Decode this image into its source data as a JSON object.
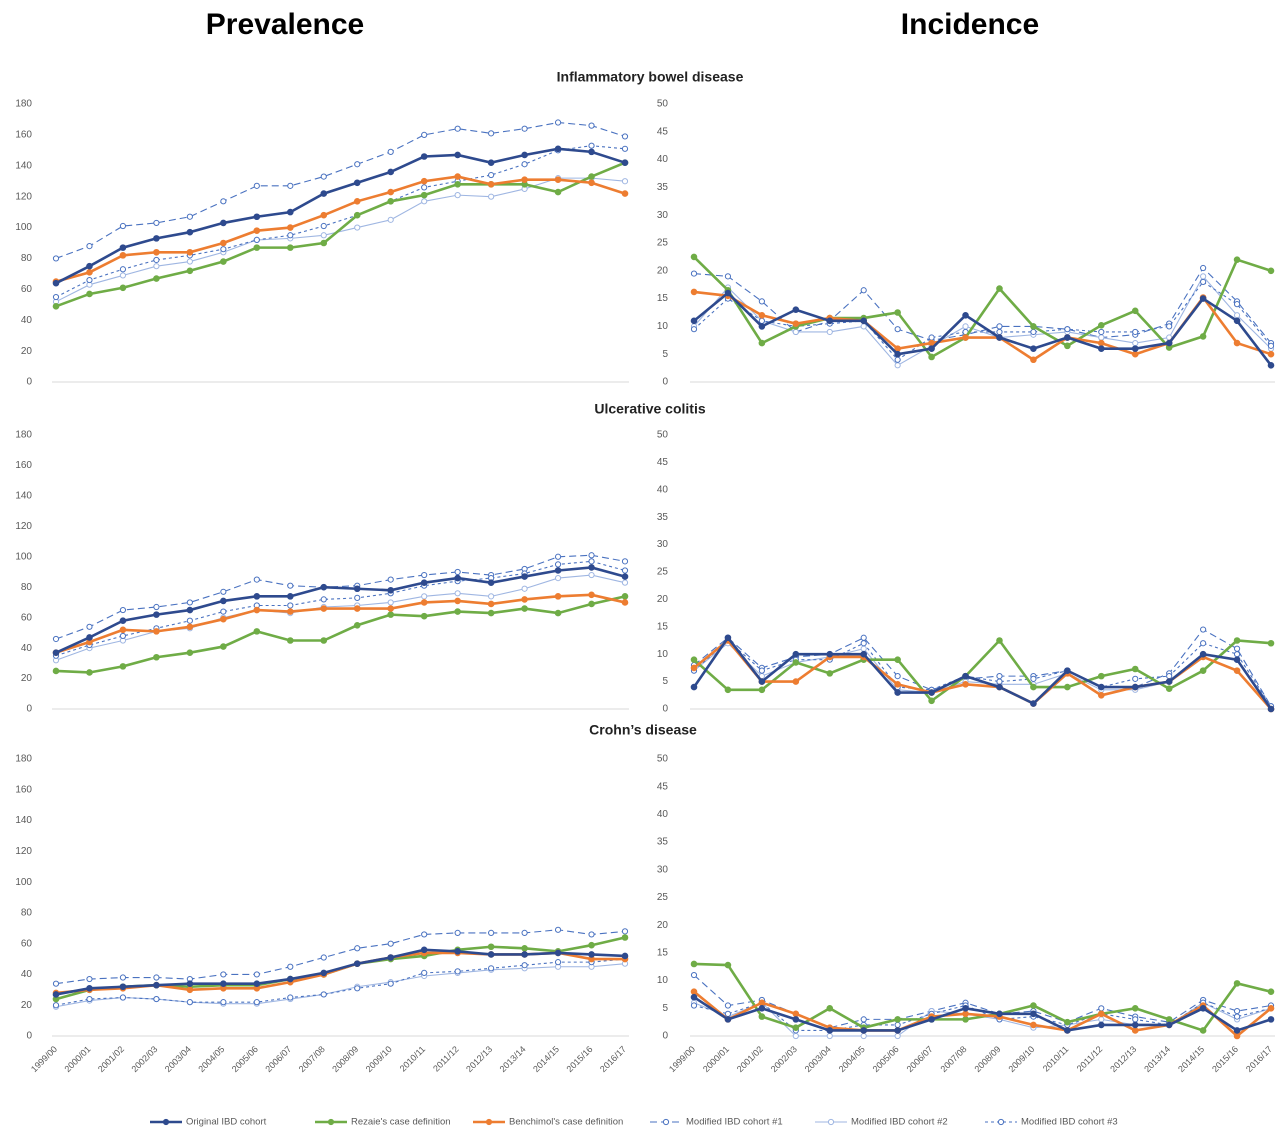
{
  "column_titles": [
    "Prevalence",
    "Incidence"
  ],
  "row_titles": [
    "Inflammatory bowel disease",
    "Ulcerative colitis",
    "Crohn’s disease"
  ],
  "legend": [
    {
      "name": "Original IBD cohort",
      "color": "#2e4a8e",
      "dash": "solid",
      "marker": "filled",
      "width": 2.6
    },
    {
      "name": "Rezaie's case definition",
      "color": "#6fac46",
      "dash": "solid",
      "marker": "filled",
      "width": 2.6
    },
    {
      "name": "Benchimol's case definition",
      "color": "#ed7d31",
      "dash": "solid",
      "marker": "filled",
      "width": 2.6
    },
    {
      "name": "Modified IBD cohort #1",
      "color": "#4a72c0",
      "dash": "dashed",
      "marker": "open",
      "width": 1.1
    },
    {
      "name": "Modified IBD cohort #2",
      "color": "#9fb6e2",
      "dash": "solid",
      "marker": "open",
      "width": 1.1
    },
    {
      "name": "Modified IBD cohort #3",
      "color": "#4a72c0",
      "dash": "dotted",
      "marker": "open",
      "width": 1.1
    }
  ],
  "chart_data": [
    {
      "type": "line",
      "ylim": [
        0,
        180
      ],
      "yticks": [
        0,
        20,
        40,
        60,
        80,
        100,
        120,
        140,
        160,
        180
      ],
      "series": [
        {
          "values": [
            64,
            75,
            87,
            93,
            97,
            103,
            107,
            110,
            122,
            129,
            136,
            146,
            147,
            142,
            147,
            151,
            149,
            142
          ]
        },
        {
          "values": [
            49,
            57,
            61,
            67,
            72,
            78,
            87,
            87,
            90,
            108,
            117,
            121,
            128,
            128,
            128,
            123,
            133,
            142
          ]
        },
        {
          "values": [
            65,
            71,
            82,
            84,
            84,
            90,
            98,
            100,
            108,
            117,
            123,
            130,
            133,
            128,
            131,
            131,
            129,
            122
          ]
        },
        {
          "values": [
            80,
            88,
            101,
            103,
            107,
            117,
            127,
            127,
            133,
            141,
            149,
            160,
            164,
            161,
            164,
            168,
            166,
            159
          ]
        },
        {
          "values": [
            52,
            63,
            69,
            75,
            78,
            84,
            92,
            93,
            95,
            100,
            105,
            117,
            121,
            120,
            125,
            132,
            132,
            130
          ]
        },
        {
          "values": [
            55,
            66,
            73,
            79,
            82,
            86,
            92,
            95,
            101,
            108,
            117,
            126,
            130,
            134,
            141,
            150,
            153,
            151
          ]
        }
      ]
    },
    {
      "type": "line",
      "ylim": [
        0,
        50
      ],
      "yticks": [
        0,
        5,
        10,
        15,
        20,
        25,
        30,
        35,
        40,
        45,
        50
      ],
      "series": [
        {
          "values": [
            11,
            16,
            10,
            13,
            11,
            11,
            5,
            6,
            12,
            8,
            6,
            8,
            6,
            6,
            7,
            15,
            11,
            3
          ]
        },
        {
          "values": [
            22.5,
            16.5,
            7,
            10,
            11.5,
            11.5,
            12.5,
            4.5,
            8,
            16.8,
            10,
            6.5,
            10.2,
            12.8,
            6.2,
            8.2,
            22,
            20
          ]
        },
        {
          "values": [
            16.2,
            15.5,
            12,
            10.5,
            11.5,
            11,
            6,
            7,
            8,
            8,
            4,
            8,
            7,
            5,
            7,
            15.2,
            7,
            5
          ]
        },
        {
          "values": [
            19.5,
            19,
            14.5,
            9,
            11,
            16.5,
            9.5,
            7.5,
            8.5,
            10,
            10,
            9.5,
            8,
            8.5,
            10.5,
            20.5,
            14.5,
            7
          ]
        },
        {
          "values": [
            10,
            17,
            11,
            9,
            9,
            10,
            3,
            6.5,
            10,
            8,
            8.5,
            9,
            8,
            7,
            8,
            19,
            12,
            6
          ]
        },
        {
          "values": [
            9.5,
            15,
            11,
            10,
            10.5,
            11,
            4,
            8,
            9,
            9,
            9,
            9.5,
            9,
            9,
            10,
            18,
            14,
            6.5
          ]
        }
      ]
    },
    {
      "type": "line",
      "ylim": [
        0,
        180
      ],
      "yticks": [
        0,
        20,
        40,
        60,
        80,
        100,
        120,
        140,
        160,
        180
      ],
      "series": [
        {
          "values": [
            37,
            47,
            58,
            62,
            65,
            71,
            74,
            74,
            80,
            79,
            78,
            83,
            86,
            83,
            87,
            91,
            93,
            87
          ]
        },
        {
          "values": [
            25,
            24,
            28,
            34,
            37,
            41,
            51,
            45,
            45,
            55,
            62,
            61,
            64,
            63,
            66,
            63,
            69,
            74
          ]
        },
        {
          "values": [
            37,
            44,
            52,
            51,
            54,
            59,
            65,
            64,
            66,
            66,
            66,
            70,
            71,
            69,
            72,
            74,
            75,
            70
          ]
        },
        {
          "values": [
            46,
            54,
            65,
            67,
            70,
            77,
            85,
            81,
            80,
            81,
            85,
            88,
            90,
            88,
            92,
            100,
            101,
            97
          ]
        },
        {
          "values": [
            32,
            40,
            45,
            51,
            53,
            60,
            65,
            63,
            67,
            68,
            70,
            74,
            76,
            74,
            79,
            86,
            88,
            83
          ]
        },
        {
          "values": [
            35,
            42,
            48,
            53,
            58,
            64,
            68,
            68,
            72,
            73,
            76,
            81,
            84,
            86,
            89,
            95,
            97,
            91
          ]
        }
      ]
    },
    {
      "type": "line",
      "ylim": [
        0,
        50
      ],
      "yticks": [
        0,
        5,
        10,
        15,
        20,
        25,
        30,
        35,
        40,
        45,
        50
      ],
      "series": [
        {
          "values": [
            4,
            13,
            5,
            10,
            10,
            10,
            3,
            3,
            6,
            4,
            1,
            7,
            4,
            4,
            5,
            10,
            9,
            0
          ]
        },
        {
          "values": [
            9,
            3.5,
            3.5,
            8.5,
            6.5,
            9,
            9,
            1.5,
            6,
            12.5,
            4,
            4,
            6,
            7.3,
            3.7,
            7,
            12.5,
            12
          ]
        },
        {
          "values": [
            7.5,
            12.5,
            5,
            5,
            9.5,
            9.5,
            4.5,
            3,
            4.5,
            4,
            1,
            6.5,
            2.5,
            4,
            5,
            9.5,
            7,
            0
          ]
        },
        {
          "values": [
            8,
            13,
            7.5,
            9.5,
            10,
            13,
            6,
            3.5,
            5.5,
            6,
            6,
            7,
            4,
            4,
            6.5,
            14.5,
            11,
            0.5
          ]
        },
        {
          "values": [
            7,
            12,
            6,
            8.5,
            9.5,
            11,
            3.5,
            3,
            5,
            4.5,
            4.5,
            6.5,
            3.5,
            3.5,
            5,
            10,
            9,
            0.5
          ]
        },
        {
          "values": [
            7,
            12.5,
            7,
            9,
            9,
            12,
            4,
            3.5,
            6,
            5,
            5.5,
            7,
            4,
            5.5,
            6,
            12,
            10,
            0.5
          ]
        }
      ]
    },
    {
      "type": "line",
      "ylim": [
        0,
        180
      ],
      "yticks": [
        0,
        20,
        40,
        60,
        80,
        100,
        120,
        140,
        160,
        180
      ],
      "categories": [
        "1999/00",
        "2000/01",
        "2001/02",
        "2002/03",
        "2003/04",
        "2004/05",
        "2005/06",
        "2006/07",
        "2007/08",
        "2008/09",
        "2009/10",
        "2010/11",
        "2011/12",
        "2012/13",
        "2013/14",
        "2014/15",
        "2015/16",
        "2016/17"
      ],
      "series": [
        {
          "values": [
            27,
            31,
            32,
            33,
            34,
            34,
            34,
            37,
            41,
            47,
            51,
            56,
            55,
            53,
            53,
            54,
            53,
            52
          ]
        },
        {
          "values": [
            24,
            30,
            32,
            33,
            32,
            33,
            33,
            37,
            40,
            47,
            50,
            52,
            56,
            58,
            57,
            55,
            59,
            64
          ]
        },
        {
          "values": [
            28,
            30,
            31,
            33,
            30,
            31,
            31,
            35,
            40,
            47,
            51,
            54,
            54,
            53,
            53,
            54,
            50,
            50
          ]
        },
        {
          "values": [
            34,
            37,
            38,
            38,
            37,
            40,
            40,
            45,
            51,
            57,
            60,
            66,
            67,
            67,
            67,
            69,
            66,
            68
          ]
        },
        {
          "values": [
            19,
            23,
            25,
            24,
            22,
            21,
            21,
            24,
            27,
            32,
            35,
            39,
            41,
            43,
            44,
            45,
            45,
            47
          ]
        },
        {
          "values": [
            20,
            24,
            25,
            24,
            22,
            22,
            22,
            25,
            27,
            31,
            34,
            41,
            42,
            44,
            46,
            48,
            48,
            50
          ]
        }
      ]
    },
    {
      "type": "line",
      "ylim": [
        0,
        50
      ],
      "yticks": [
        0,
        5,
        10,
        15,
        20,
        25,
        30,
        35,
        40,
        45,
        50
      ],
      "categories": [
        "1999/00",
        "2000/01",
        "2001/02",
        "2002/03",
        "2003/04",
        "2004/05",
        "2005/06",
        "2006/07",
        "2007/08",
        "2008/09",
        "2009/10",
        "2010/11",
        "2011/12",
        "2012/13",
        "2013/14",
        "2014/15",
        "2015/16",
        "2016/17"
      ],
      "series": [
        {
          "values": [
            7,
            3,
            5,
            3,
            1,
            1,
            1,
            3,
            5,
            4,
            4,
            1,
            2,
            2,
            2,
            5,
            1,
            3
          ]
        },
        {
          "values": [
            13,
            12.8,
            3.5,
            1.5,
            5,
            1.5,
            3,
            3,
            3,
            4,
            5.5,
            2.5,
            4,
            5,
            3,
            1,
            9.5,
            8
          ]
        },
        {
          "values": [
            8,
            3,
            6,
            4,
            1.5,
            1,
            1,
            3.5,
            4,
            3.5,
            2,
            1,
            4,
            1,
            2,
            5.5,
            0,
            5
          ]
        },
        {
          "values": [
            11,
            5.5,
            6.5,
            4,
            1.5,
            3,
            3,
            4.5,
            6,
            4,
            4.5,
            2.5,
            5,
            3.5,
            2.5,
            6.5,
            4.5,
            5.5
          ]
        },
        {
          "values": [
            6,
            3.5,
            6,
            0,
            0,
            0,
            0,
            4.5,
            4,
            3,
            1.5,
            2,
            3,
            2,
            2,
            6,
            3,
            5
          ]
        },
        {
          "values": [
            5.5,
            4,
            6,
            1,
            1,
            2,
            2,
            4,
            5.5,
            3,
            3.5,
            2,
            4,
            3,
            2,
            6,
            3.5,
            5
          ]
        }
      ]
    }
  ]
}
